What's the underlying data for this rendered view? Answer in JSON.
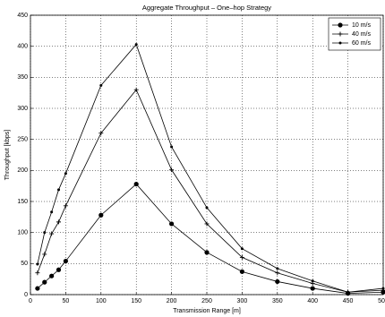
{
  "chart_data": {
    "type": "line",
    "title": "Aggregate Throughput – One–hop Strategy",
    "xlabel": "Transmission Range [m]",
    "ylabel": "Throughput [kbps]",
    "x": [
      10,
      20,
      30,
      40,
      50,
      100,
      150,
      200,
      250,
      300,
      350,
      400,
      450,
      500
    ],
    "series": [
      {
        "name": "10 m/s",
        "color": "#000000",
        "marker": "o",
        "values": [
          10,
          20,
          30,
          40,
          54,
          128,
          178,
          114,
          68,
          37,
          21,
          10,
          2,
          4
        ]
      },
      {
        "name": "40 m/s",
        "color": "#000000",
        "marker": "+",
        "values": [
          35,
          65,
          98,
          117,
          143,
          260,
          330,
          201,
          114,
          60,
          35,
          18,
          4,
          7
        ]
      },
      {
        "name": "60 m/s",
        "color": "#000000",
        "marker": ".",
        "values": [
          49,
          100,
          133,
          169,
          195,
          337,
          403,
          238,
          140,
          74,
          42,
          22,
          4,
          10
        ]
      }
    ],
    "xlim": [
      0,
      500
    ],
    "xticks": [
      0,
      50,
      100,
      150,
      200,
      250,
      300,
      350,
      400,
      450,
      500
    ],
    "ylim": [
      0,
      450
    ],
    "yticks": [
      0,
      50,
      100,
      150,
      200,
      250,
      300,
      350,
      400,
      450
    ],
    "grid": true,
    "legend": "upper right"
  }
}
